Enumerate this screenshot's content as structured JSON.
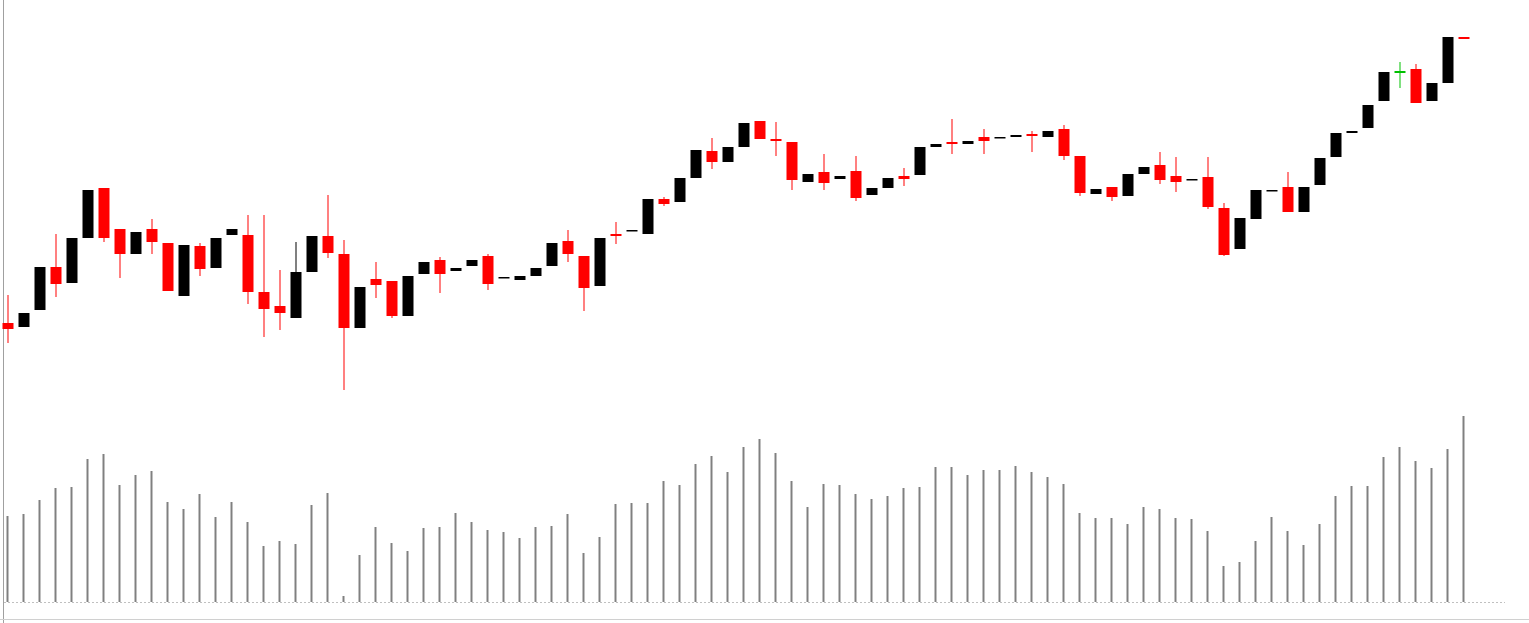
{
  "chart_data": {
    "type": "candlestick",
    "open": [
      77,
      73,
      90,
      133,
      117,
      162,
      212,
      171,
      146,
      171,
      157,
      104,
      154,
      132,
      165,
      165,
      108,
      94,
      82,
      128,
      164,
      146,
      72,
      121,
      119,
      84,
      126,
      140,
      129,
      134,
      144,
      123,
      120,
      124,
      134,
      159,
      144,
      114,
      166,
      170,
      166,
      201,
      198,
      222,
      249,
      238,
      253,
      279,
      261,
      258,
      218,
      228,
      221,
      229,
      205,
      212,
      224,
      225,
      253,
      258,
      256,
      263,
      263,
      263,
      266,
      263,
      271,
      244,
      206,
      213,
      204,
      226,
      235,
      224,
      220,
      223,
      192,
      151,
      181,
      210,
      213,
      188,
      215,
      243,
      267,
      272,
      299,
      327,
      331,
      299,
      317,
      363
    ],
    "high": [
      105,
      87,
      133,
      166,
      162,
      210,
      212,
      171,
      168,
      181,
      157,
      155,
      157,
      162,
      171,
      185,
      185,
      130,
      158,
      164,
      205,
      160,
      113,
      138,
      119,
      124,
      138,
      143,
      132,
      140,
      146,
      123,
      124,
      132,
      157,
      170,
      144,
      162,
      178,
      170,
      201,
      203,
      222,
      250,
      262,
      253,
      277,
      279,
      278,
      258,
      226,
      246,
      224,
      244,
      212,
      222,
      232,
      253,
      256,
      281,
      259,
      271,
      263,
      265,
      269,
      269,
      275,
      244,
      211,
      213,
      226,
      233,
      248,
      243,
      221,
      243,
      197,
      182,
      210,
      210,
      228,
      213,
      242,
      267,
      269,
      295,
      328,
      338,
      336,
      317,
      363,
      363
    ],
    "low": [
      57,
      73,
      90,
      103,
      117,
      162,
      158,
      122,
      146,
      146,
      109,
      104,
      124,
      132,
      165,
      96,
      63,
      70,
      82,
      128,
      142,
      10,
      72,
      102,
      82,
      84,
      126,
      107,
      129,
      134,
      110,
      123,
      120,
      124,
      134,
      138,
      89,
      114,
      156,
      170,
      166,
      194,
      198,
      222,
      231,
      238,
      253,
      261,
      244,
      210,
      218,
      210,
      221,
      199,
      205,
      212,
      214,
      225,
      253,
      246,
      256,
      246,
      263,
      263,
      248,
      263,
      240,
      204,
      206,
      199,
      204,
      226,
      216,
      208,
      220,
      191,
      144,
      151,
      181,
      210,
      188,
      188,
      215,
      243,
      267,
      272,
      299,
      312,
      297,
      299,
      317,
      361
    ],
    "close": [
      71,
      87,
      133,
      116,
      162,
      210,
      162,
      146,
      168,
      158,
      109,
      155,
      131,
      162,
      171,
      108,
      91,
      87,
      128,
      164,
      147,
      72,
      113,
      115,
      84,
      124,
      138,
      126,
      132,
      140,
      116,
      123,
      124,
      132,
      157,
      146,
      112,
      162,
      164,
      170,
      201,
      196,
      222,
      250,
      238,
      253,
      277,
      261,
      259,
      220,
      226,
      217,
      224,
      202,
      212,
      222,
      221,
      253,
      256,
      256,
      259,
      259,
      263,
      265,
      264,
      269,
      244,
      207,
      211,
      203,
      226,
      233,
      220,
      218,
      221,
      193,
      145,
      182,
      210,
      210,
      188,
      213,
      242,
      267,
      269,
      295,
      328,
      329,
      297,
      317,
      363,
      361
    ],
    "ylim": [
      0,
      400
    ],
    "up_color": "#000000",
    "down_color": "#ff0000",
    "highlight": {
      "index": 87,
      "color": "#00c000"
    },
    "volume": {
      "color": "#808080",
      "ylim": [
        0,
        200
      ],
      "values": [
        86,
        88,
        102,
        114,
        115,
        143,
        148,
        117,
        127,
        131,
        100,
        93,
        108,
        85,
        100,
        80,
        56,
        61,
        58,
        97,
        109,
        6,
        47,
        75,
        59,
        51,
        74,
        75,
        89,
        80,
        72,
        70,
        64,
        75,
        76,
        88,
        49,
        65,
        98,
        99,
        99,
        121,
        117,
        138,
        146,
        130,
        155,
        163,
        149,
        121,
        95,
        118,
        117,
        108,
        103,
        106,
        114,
        115,
        135,
        135,
        127,
        132,
        132,
        136,
        130,
        125,
        118,
        89,
        84,
        84,
        78,
        95,
        93,
        84,
        83,
        71,
        36,
        40,
        61,
        85,
        71,
        57,
        78,
        106,
        116,
        116,
        145,
        155,
        141,
        134,
        153,
        186
      ]
    }
  }
}
